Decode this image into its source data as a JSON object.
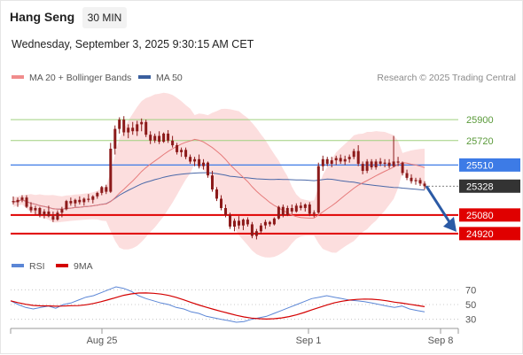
{
  "header": {
    "title": "Hang Seng",
    "timeframe": "30 MIN",
    "datetime": "Wednesday, September 3, 2025 9:30:15 AM CET"
  },
  "legend": {
    "items": [
      {
        "label": "MA 20 + Bollinger Bands",
        "color": "#f08c8c"
      },
      {
        "label": "MA 50",
        "color": "#3a5f9e"
      }
    ],
    "research": "Research © 2025 Trading Central"
  },
  "rsi_legend": {
    "items": [
      {
        "label": "RSI",
        "color": "#5b86d6"
      },
      {
        "label": "9MA",
        "color": "#d40000"
      }
    ]
  },
  "colors": {
    "candle": "#8c1a1a",
    "bollinger_fill": "#fcdcdc",
    "ma20": "#e67b7b",
    "ma50": "#4a68a8",
    "resistance": "#9fd07f",
    "pivot": "#3d7be6",
    "support": "#e00000",
    "current": "#333333",
    "arrow": "#2b5aa5",
    "rsi": "#5b86d6",
    "rsi_ma": "#d40000"
  },
  "chart_data": {
    "type": "candlestick",
    "instrument": "Hang Seng",
    "timeframe": "30 MIN",
    "x_ticks": [
      "Aug 25",
      "Sep 1",
      "Sep 8"
    ],
    "ylim": [
      24820,
      26000
    ],
    "levels": [
      {
        "value": 25900,
        "label": "25900",
        "kind": "resistance"
      },
      {
        "value": 25720,
        "label": "25720",
        "kind": "resistance"
      },
      {
        "value": 25510,
        "label": "25510",
        "kind": "pivot"
      },
      {
        "value": 25328,
        "label": "25328",
        "kind": "current"
      },
      {
        "value": 25080,
        "label": "25080",
        "kind": "support"
      },
      {
        "value": 24920,
        "label": "24920",
        "kind": "support"
      }
    ],
    "ohlc": [
      [
        25200,
        25240,
        25170,
        25190
      ],
      [
        25190,
        25230,
        25150,
        25210
      ],
      [
        25210,
        25250,
        25190,
        25230
      ],
      [
        25230,
        25250,
        25140,
        25150
      ],
      [
        25150,
        25190,
        25100,
        25120
      ],
      [
        25120,
        25160,
        25080,
        25140
      ],
      [
        25140,
        25150,
        25060,
        25080
      ],
      [
        25080,
        25130,
        25050,
        25110
      ],
      [
        25110,
        25160,
        25060,
        25070
      ],
      [
        25070,
        25110,
        25020,
        25040
      ],
      [
        25040,
        25120,
        25030,
        25100
      ],
      [
        25100,
        25150,
        25060,
        25130
      ],
      [
        25130,
        25210,
        25120,
        25200
      ],
      [
        25200,
        25230,
        25160,
        25180
      ],
      [
        25180,
        25220,
        25150,
        25210
      ],
      [
        25210,
        25240,
        25170,
        25190
      ],
      [
        25190,
        25230,
        25160,
        25220
      ],
      [
        25220,
        25260,
        25190,
        25210
      ],
      [
        25210,
        25250,
        25180,
        25240
      ],
      [
        25240,
        25280,
        25220,
        25270
      ],
      [
        25270,
        25330,
        25250,
        25320
      ],
      [
        25320,
        25340,
        25260,
        25280
      ],
      [
        25280,
        25700,
        25270,
        25650
      ],
      [
        25650,
        25850,
        25600,
        25820
      ],
      [
        25820,
        25920,
        25780,
        25900
      ],
      [
        25900,
        25930,
        25760,
        25790
      ],
      [
        25790,
        25860,
        25740,
        25830
      ],
      [
        25830,
        25880,
        25770,
        25800
      ],
      [
        25800,
        25890,
        25760,
        25860
      ],
      [
        25860,
        25910,
        25800,
        25880
      ],
      [
        25880,
        25900,
        25750,
        25770
      ],
      [
        25770,
        25800,
        25690,
        25720
      ],
      [
        25720,
        25780,
        25700,
        25760
      ],
      [
        25760,
        25800,
        25690,
        25710
      ],
      [
        25710,
        25790,
        25700,
        25780
      ],
      [
        25780,
        25810,
        25700,
        25720
      ],
      [
        25720,
        25760,
        25660,
        25680
      ],
      [
        25680,
        25700,
        25600,
        25620
      ],
      [
        25620,
        25660,
        25580,
        25640
      ],
      [
        25640,
        25660,
        25560,
        25580
      ],
      [
        25580,
        25600,
        25520,
        25540
      ],
      [
        25540,
        25580,
        25500,
        25560
      ],
      [
        25560,
        25600,
        25480,
        25500
      ],
      [
        25500,
        25560,
        25470,
        25530
      ],
      [
        25530,
        25540,
        25400,
        25420
      ],
      [
        25420,
        25460,
        25280,
        25300
      ],
      [
        25300,
        25320,
        25200,
        25220
      ],
      [
        25220,
        25250,
        25120,
        25140
      ],
      [
        25140,
        25170,
        25060,
        25080
      ],
      [
        25080,
        25100,
        24960,
        24980
      ],
      [
        24980,
        25050,
        24940,
        25030
      ],
      [
        25030,
        25070,
        24960,
        24990
      ],
      [
        24990,
        25050,
        24950,
        25040
      ],
      [
        25040,
        25060,
        24980,
        25000
      ],
      [
        25000,
        25020,
        24880,
        24900
      ],
      [
        24900,
        24960,
        24870,
        24940
      ],
      [
        24940,
        25010,
        24920,
        24990
      ],
      [
        24990,
        25040,
        24960,
        25020
      ],
      [
        25020,
        25030,
        24980,
        25000
      ],
      [
        25000,
        25060,
        24990,
        25050
      ],
      [
        25050,
        25160,
        25040,
        25150
      ],
      [
        25150,
        25170,
        25060,
        25080
      ],
      [
        25080,
        25160,
        25070,
        25140
      ],
      [
        25140,
        25170,
        25090,
        25110
      ],
      [
        25110,
        25180,
        25100,
        25160
      ],
      [
        25160,
        25190,
        25120,
        25140
      ],
      [
        25140,
        25180,
        25110,
        25170
      ],
      [
        25170,
        25190,
        25070,
        25090
      ],
      [
        25090,
        25120,
        25060,
        25100
      ],
      [
        25100,
        25530,
        25090,
        25500
      ],
      [
        25500,
        25590,
        25460,
        25560
      ],
      [
        25560,
        25580,
        25500,
        25520
      ],
      [
        25520,
        25580,
        25490,
        25550
      ],
      [
        25550,
        25590,
        25510,
        25570
      ],
      [
        25570,
        25600,
        25520,
        25540
      ],
      [
        25540,
        25590,
        25510,
        25560
      ],
      [
        25560,
        25600,
        25530,
        25580
      ],
      [
        25580,
        25650,
        25560,
        25630
      ],
      [
        25630,
        25680,
        25500,
        25520
      ],
      [
        25520,
        25540,
        25430,
        25460
      ],
      [
        25460,
        25560,
        25440,
        25540
      ],
      [
        25540,
        25560,
        25470,
        25490
      ],
      [
        25490,
        25560,
        25470,
        25540
      ],
      [
        25540,
        25570,
        25500,
        25520
      ],
      [
        25520,
        25560,
        25490,
        25530
      ],
      [
        25530,
        25560,
        25480,
        25500
      ],
      [
        25500,
        25760,
        25490,
        25540
      ],
      [
        25540,
        25580,
        25500,
        25530
      ],
      [
        25530,
        25540,
        25420,
        25440
      ],
      [
        25440,
        25470,
        25380,
        25400
      ],
      [
        25400,
        25430,
        25350,
        25370
      ],
      [
        25370,
        25400,
        25340,
        25380
      ],
      [
        25380,
        25400,
        25330,
        25350
      ],
      [
        25350,
        25370,
        25300,
        25328
      ]
    ],
    "rsi_axis": {
      "ticks": [
        70,
        50,
        30
      ],
      "ylim": [
        20,
        80
      ]
    },
    "rsi": [
      55,
      50,
      46,
      44,
      46,
      48,
      45,
      50,
      52,
      56,
      60,
      62,
      66,
      70,
      74,
      72,
      68,
      62,
      58,
      55,
      52,
      50,
      46,
      44,
      40,
      38,
      34,
      32,
      30,
      28,
      26,
      27,
      30,
      32,
      34,
      38,
      42,
      46,
      50,
      54,
      58,
      60,
      62,
      60,
      58,
      56,
      55,
      54,
      52,
      50,
      48,
      46,
      48,
      44,
      42,
      40
    ]
  }
}
